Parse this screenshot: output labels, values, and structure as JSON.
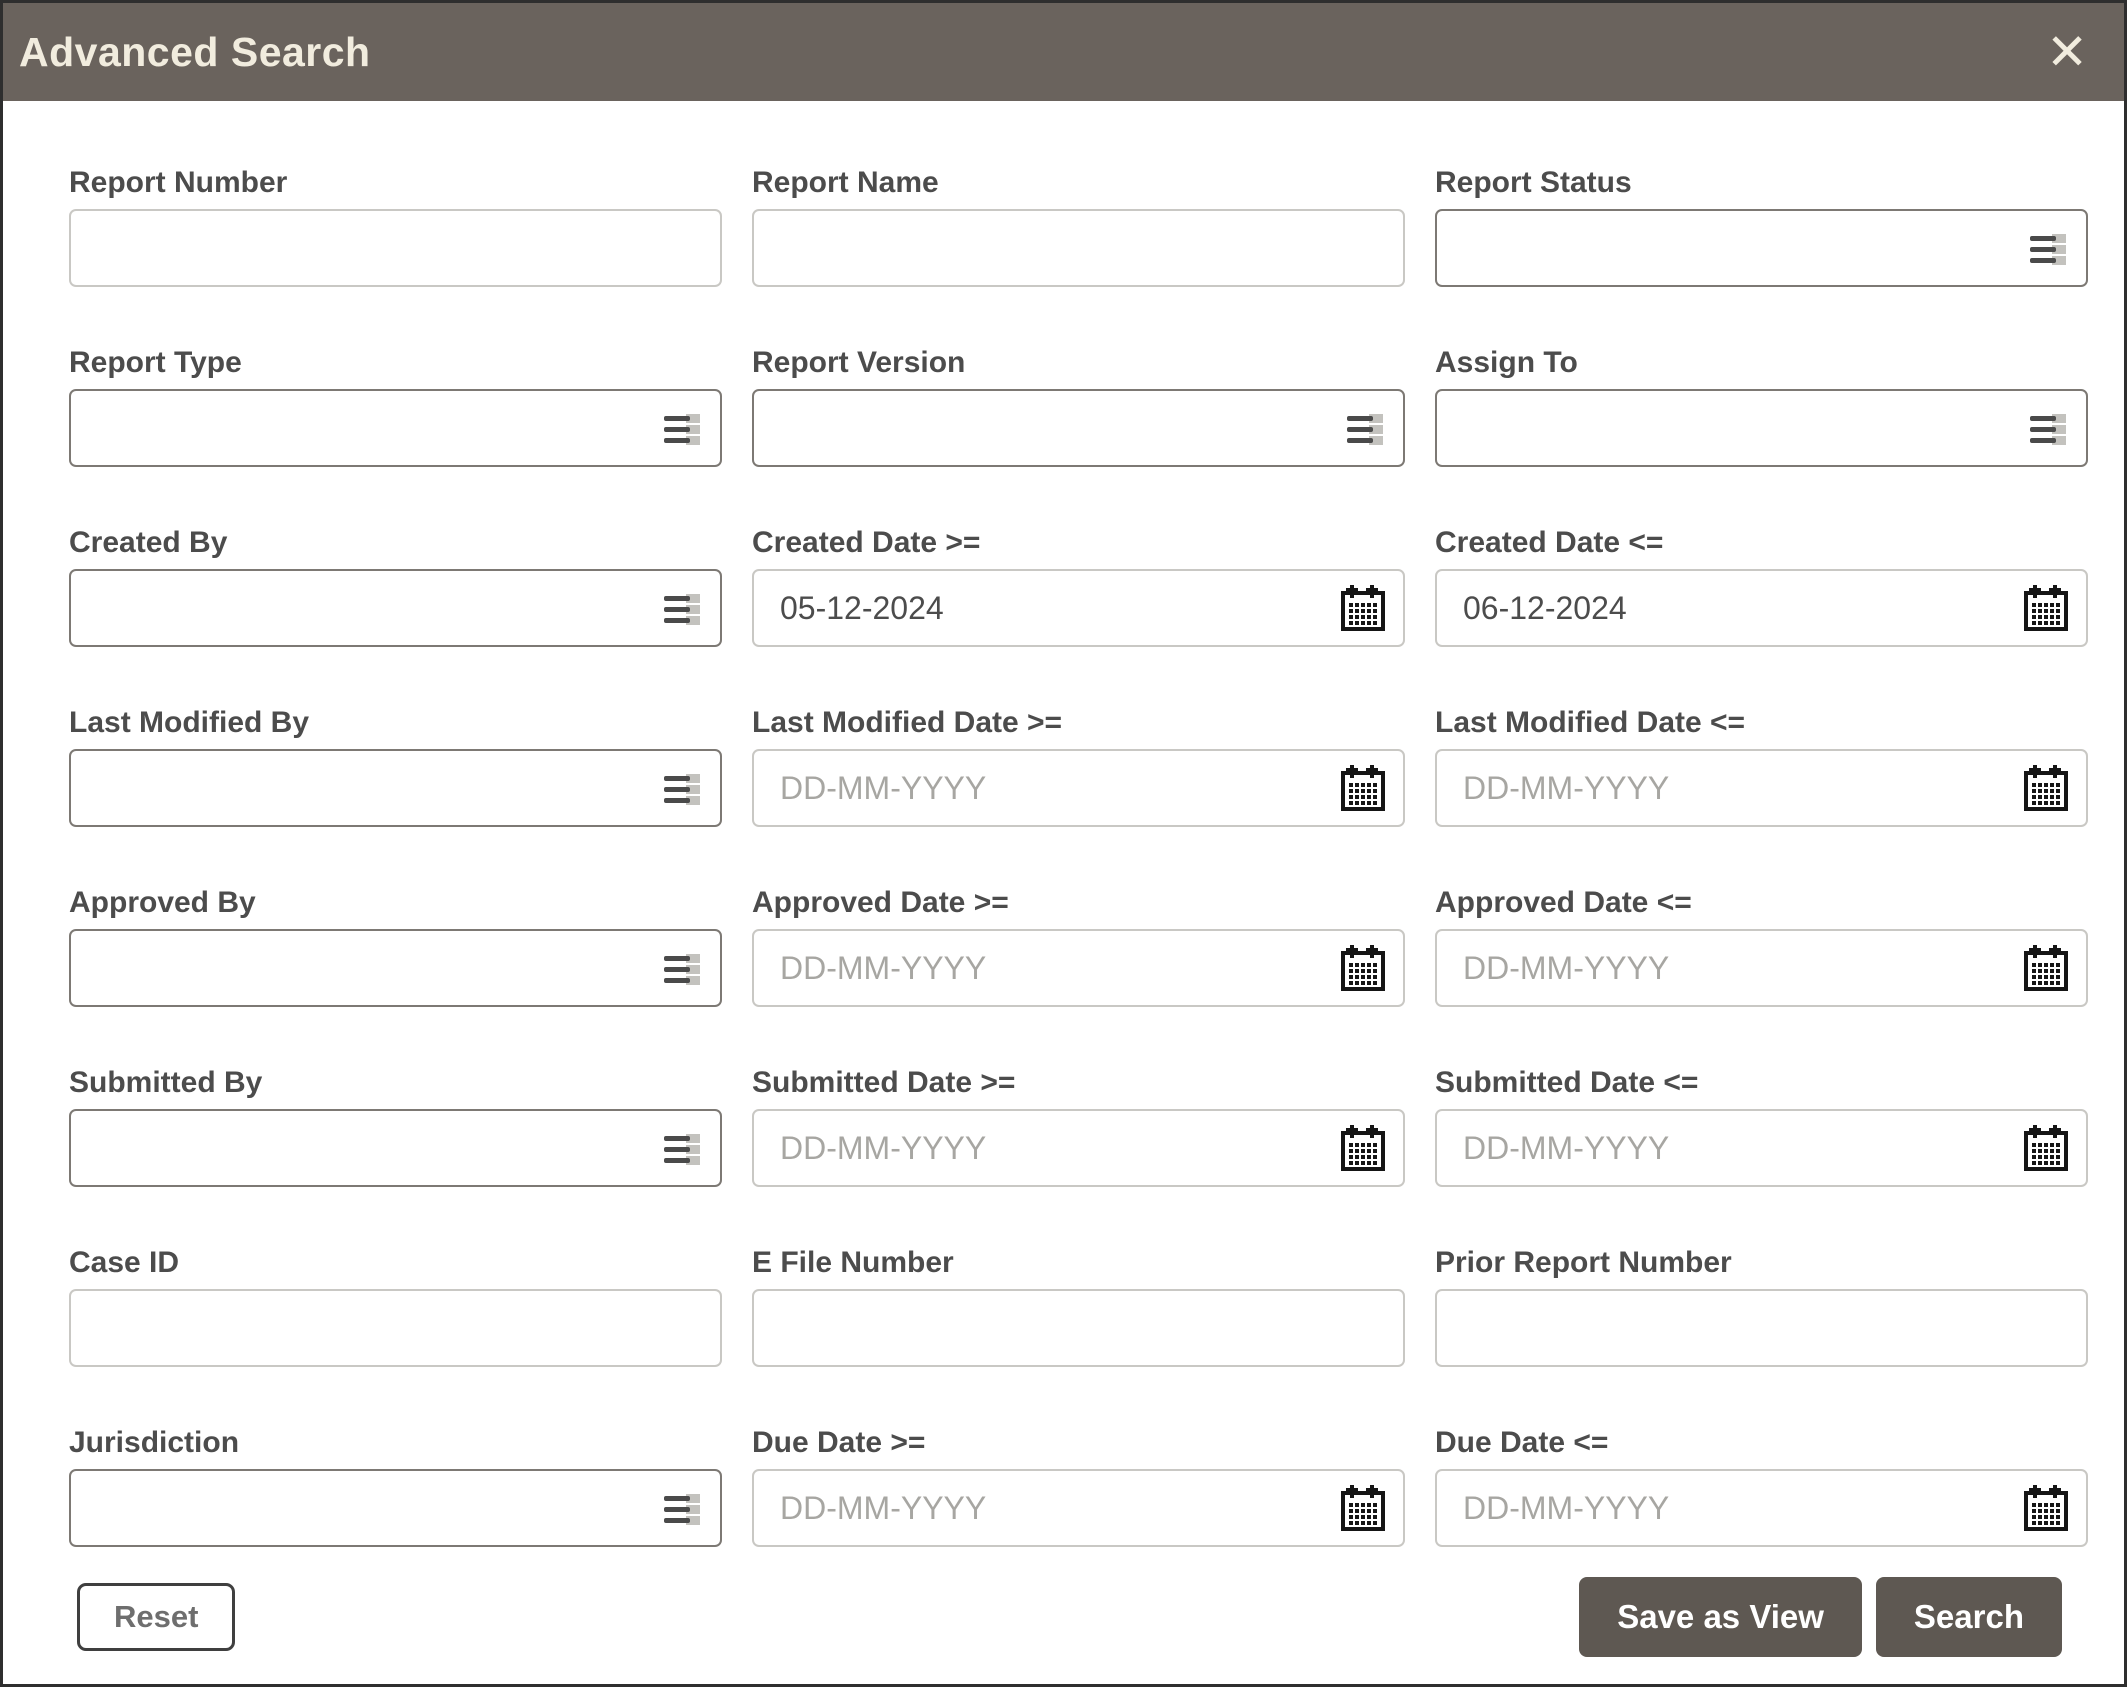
{
  "dialog": {
    "title": "Advanced Search",
    "close_glyph": "✕"
  },
  "colors": {
    "header_bg": "#6A635D",
    "header_text": "#F1ECDE",
    "button_bg": "#5E5852",
    "select_border": "#7d7974",
    "plain_border": "#c9c8c4",
    "label_text": "#4c4c4c",
    "placeholder_text": "#a7a6a2"
  },
  "fields": [
    {
      "name": "report-number",
      "label": "Report Number",
      "type": "text",
      "value": "",
      "placeholder": ""
    },
    {
      "name": "report-name",
      "label": "Report Name",
      "type": "text",
      "value": "",
      "placeholder": ""
    },
    {
      "name": "report-status",
      "label": "Report Status",
      "type": "select",
      "value": "",
      "placeholder": ""
    },
    {
      "name": "report-type",
      "label": "Report Type",
      "type": "select",
      "value": "",
      "placeholder": ""
    },
    {
      "name": "report-version",
      "label": "Report Version",
      "type": "select",
      "value": "",
      "placeholder": ""
    },
    {
      "name": "assign-to",
      "label": "Assign To",
      "type": "select",
      "value": "",
      "placeholder": ""
    },
    {
      "name": "created-by",
      "label": "Created By",
      "type": "select",
      "value": "",
      "placeholder": ""
    },
    {
      "name": "created-date-from",
      "label": "Created Date >=",
      "type": "date",
      "value": "05-12-2024",
      "placeholder": "DD-MM-YYYY"
    },
    {
      "name": "created-date-to",
      "label": "Created Date <=",
      "type": "date",
      "value": "06-12-2024",
      "placeholder": "DD-MM-YYYY"
    },
    {
      "name": "last-modified-by",
      "label": "Last Modified By",
      "type": "select",
      "value": "",
      "placeholder": ""
    },
    {
      "name": "last-modified-date-from",
      "label": "Last Modified Date >=",
      "type": "date",
      "value": "",
      "placeholder": "DD-MM-YYYY"
    },
    {
      "name": "last-modified-date-to",
      "label": "Last Modified Date <=",
      "type": "date",
      "value": "",
      "placeholder": "DD-MM-YYYY"
    },
    {
      "name": "approved-by",
      "label": "Approved By",
      "type": "select",
      "value": "",
      "placeholder": ""
    },
    {
      "name": "approved-date-from",
      "label": "Approved Date >=",
      "type": "date",
      "value": "",
      "placeholder": "DD-MM-YYYY"
    },
    {
      "name": "approved-date-to",
      "label": "Approved Date <=",
      "type": "date",
      "value": "",
      "placeholder": "DD-MM-YYYY"
    },
    {
      "name": "submitted-by",
      "label": "Submitted By",
      "type": "select",
      "value": "",
      "placeholder": ""
    },
    {
      "name": "submitted-date-from",
      "label": "Submitted Date >=",
      "type": "date",
      "value": "",
      "placeholder": "DD-MM-YYYY"
    },
    {
      "name": "submitted-date-to",
      "label": "Submitted Date <=",
      "type": "date",
      "value": "",
      "placeholder": "DD-MM-YYYY"
    },
    {
      "name": "case-id",
      "label": "Case ID",
      "type": "text",
      "value": "",
      "placeholder": ""
    },
    {
      "name": "e-file-number",
      "label": "E File Number",
      "type": "text",
      "value": "",
      "placeholder": ""
    },
    {
      "name": "prior-report-number",
      "label": "Prior Report Number",
      "type": "text",
      "value": "",
      "placeholder": ""
    },
    {
      "name": "jurisdiction",
      "label": "Jurisdiction",
      "type": "select",
      "value": "",
      "placeholder": ""
    },
    {
      "name": "due-date-from",
      "label": "Due Date >=",
      "type": "date",
      "value": "",
      "placeholder": "DD-MM-YYYY"
    },
    {
      "name": "due-date-to",
      "label": "Due Date <=",
      "type": "date",
      "value": "",
      "placeholder": "DD-MM-YYYY"
    }
  ],
  "footer": {
    "reset_label": "Reset",
    "save_as_view_label": "Save as View",
    "search_label": "Search"
  }
}
